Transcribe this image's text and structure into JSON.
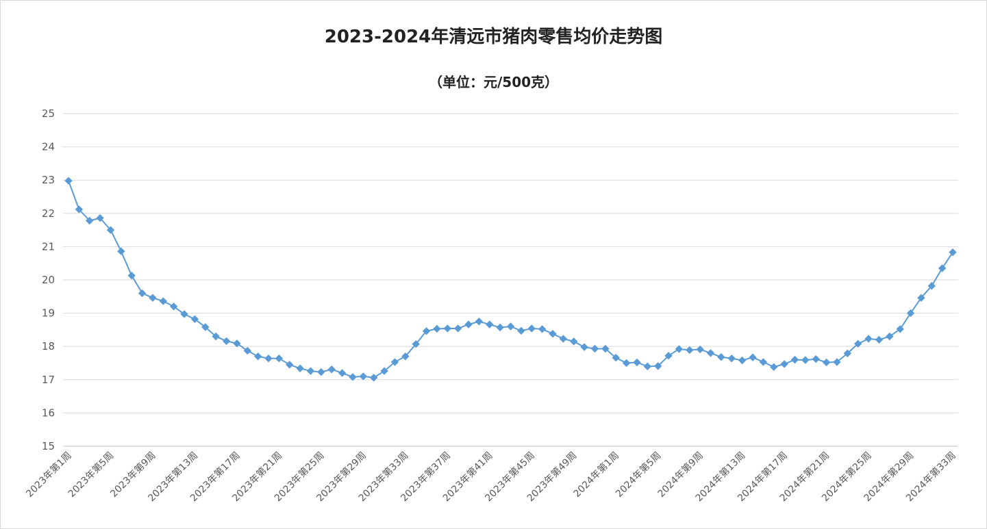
{
  "chart_data": {
    "type": "line",
    "title": "2023-2024年清远市猪肉零售均价走势图",
    "subtitle": "（单位：元/500克）",
    "xlabel": "",
    "ylabel": "",
    "ylim": [
      15,
      25
    ],
    "yticks": [
      15,
      16,
      17,
      18,
      19,
      20,
      21,
      22,
      23,
      24,
      25
    ],
    "grid": true,
    "legend": "none",
    "colors": {
      "series": "#5b9bd5",
      "grid": "#d9d9d9",
      "axis": "#bfbfbf"
    },
    "x": [
      "2023年第1周",
      "2023年第2周",
      "2023年第3周",
      "2023年第4周",
      "2023年第5周",
      "2023年第6周",
      "2023年第7周",
      "2023年第8周",
      "2023年第9周",
      "2023年第10周",
      "2023年第11周",
      "2023年第12周",
      "2023年第13周",
      "2023年第14周",
      "2023年第15周",
      "2023年第16周",
      "2023年第17周",
      "2023年第18周",
      "2023年第19周",
      "2023年第20周",
      "2023年第21周",
      "2023年第22周",
      "2023年第23周",
      "2023年第24周",
      "2023年第25周",
      "2023年第26周",
      "2023年第27周",
      "2023年第28周",
      "2023年第29周",
      "2023年第30周",
      "2023年第31周",
      "2023年第32周",
      "2023年第33周",
      "2023年第34周",
      "2023年第35周",
      "2023年第36周",
      "2023年第37周",
      "2023年第38周",
      "2023年第39周",
      "2023年第40周",
      "2023年第41周",
      "2023年第42周",
      "2023年第43周",
      "2023年第44周",
      "2023年第45周",
      "2023年第46周",
      "2023年第47周",
      "2023年第48周",
      "2023年第49周",
      "2023年第50周",
      "2023年第51周",
      "2023年第52周",
      "2024年第1周",
      "2024年第2周",
      "2024年第3周",
      "2024年第4周",
      "2024年第5周",
      "2024年第6周",
      "2024年第7周",
      "2024年第8周",
      "2024年第9周",
      "2024年第10周",
      "2024年第11周",
      "2024年第12周",
      "2024年第13周",
      "2024年第14周",
      "2024年第15周",
      "2024年第16周",
      "2024年第17周",
      "2024年第18周",
      "2024年第19周",
      "2024年第20周",
      "2024年第21周",
      "2024年第22周",
      "2024年第23周",
      "2024年第24周",
      "2024年第25周",
      "2024年第26周",
      "2024年第27周",
      "2024年第28周",
      "2024年第29周",
      "2024年第30周",
      "2024年第31周",
      "2024年第32周",
      "2024年第33周"
    ],
    "x_tick_labels": [
      "2023年第1周",
      "2023年第5周",
      "2023年第9周",
      "2023年第13周",
      "2023年第17周",
      "2023年第21周",
      "2023年第25周",
      "2023年第29周",
      "2023年第33周",
      "2023年第37周",
      "2023年第41周",
      "2023年第45周",
      "2023年第49周",
      "2024年第1周",
      "2024年第5周",
      "2024年第9周",
      "2024年第13周",
      "2024年第17周",
      "2024年第21周",
      "2024年第25周",
      "2024年第29周",
      "2024年第33周"
    ],
    "series": [
      {
        "values": [
          22.98,
          22.12,
          21.78,
          21.86,
          21.5,
          20.86,
          20.13,
          19.6,
          19.46,
          19.36,
          19.2,
          18.97,
          18.82,
          18.58,
          18.3,
          18.16,
          18.09,
          17.87,
          17.7,
          17.64,
          17.64,
          17.45,
          17.34,
          17.26,
          17.23,
          17.31,
          17.2,
          17.08,
          17.1,
          17.06,
          17.26,
          17.53,
          17.7,
          18.07,
          18.46,
          18.53,
          18.54,
          18.54,
          18.66,
          18.75,
          18.66,
          18.57,
          18.6,
          18.47,
          18.54,
          18.52,
          18.38,
          18.23,
          18.15,
          17.98,
          17.93,
          17.93,
          17.66,
          17.5,
          17.52,
          17.4,
          17.41,
          17.72,
          17.92,
          17.89,
          17.91,
          17.8,
          17.68,
          17.64,
          17.58,
          17.67,
          17.53,
          17.38,
          17.47,
          17.6,
          17.59,
          17.62,
          17.52,
          17.53,
          17.79,
          18.08,
          18.23,
          18.2,
          18.3,
          18.52,
          19.0,
          19.46,
          19.82,
          20.35,
          20.83
        ]
      }
    ]
  }
}
